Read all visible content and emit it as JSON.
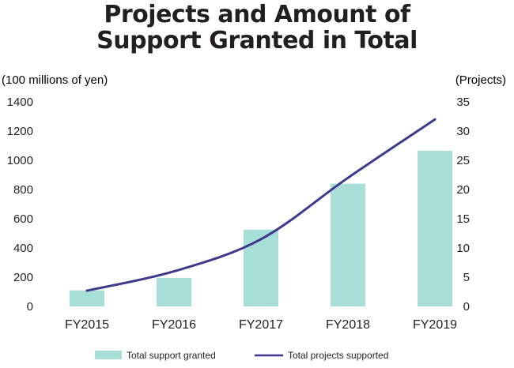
{
  "title": {
    "line1": "Projects and Amount of",
    "line2": "Support Granted in Total"
  },
  "chart_data": {
    "type": "bar+line",
    "title": "Projects and Amount of Support Granted in Total",
    "categories": [
      "FY2015",
      "FY2016",
      "FY2017",
      "FY2018",
      "FY2019"
    ],
    "left_axis": {
      "unit_label": "(100 millions of yen)",
      "ylim": [
        0,
        1400
      ],
      "ticks": [
        "1400",
        "1200",
        "1000",
        "800",
        "600",
        "400",
        "200",
        "0"
      ],
      "tick_values": [
        1400,
        1200,
        1000,
        800,
        600,
        400,
        200,
        0
      ]
    },
    "right_axis": {
      "unit_label": "(Projects)",
      "ylim": [
        0,
        35
      ],
      "ticks": [
        "35",
        "30",
        "25",
        "20",
        "15",
        "10",
        "5",
        "0"
      ],
      "tick_values": [
        35,
        30,
        25,
        20,
        15,
        10,
        5,
        0
      ]
    },
    "series": [
      {
        "name": "Total support granted",
        "type": "bar",
        "axis": "left",
        "color": "#a8dfd8",
        "values": [
          110,
          195,
          525,
          840,
          1065
        ]
      },
      {
        "name": "Total projects supported",
        "type": "line",
        "axis": "right",
        "color": "#3d3a8c",
        "values": [
          2.7,
          6,
          11.5,
          22,
          32
        ]
      }
    ],
    "legend_position": "bottom"
  }
}
